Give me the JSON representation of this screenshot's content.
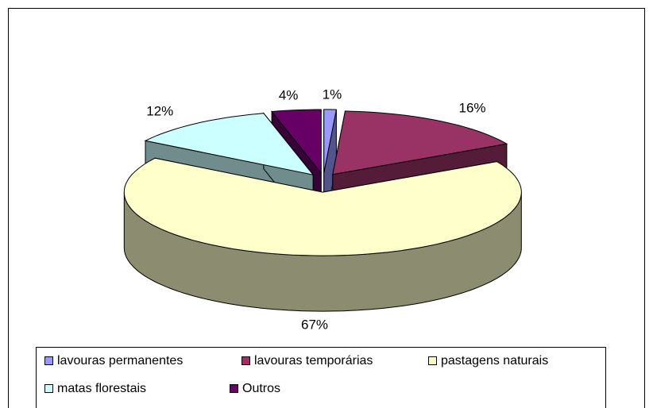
{
  "chart_data": {
    "type": "pie3d",
    "categories": [
      "lavouras permanentes",
      "lavouras temporárias",
      "pastagens naturais",
      "matas florestais",
      "Outros"
    ],
    "values": [
      1,
      16,
      67,
      12,
      4
    ],
    "value_labels": [
      "1%",
      "16%",
      "67%",
      "12%",
      "4%"
    ],
    "colors": [
      "#9999ff",
      "#993366",
      "#ffffcc",
      "#ccffff",
      "#660066"
    ],
    "legend": "bottom"
  }
}
